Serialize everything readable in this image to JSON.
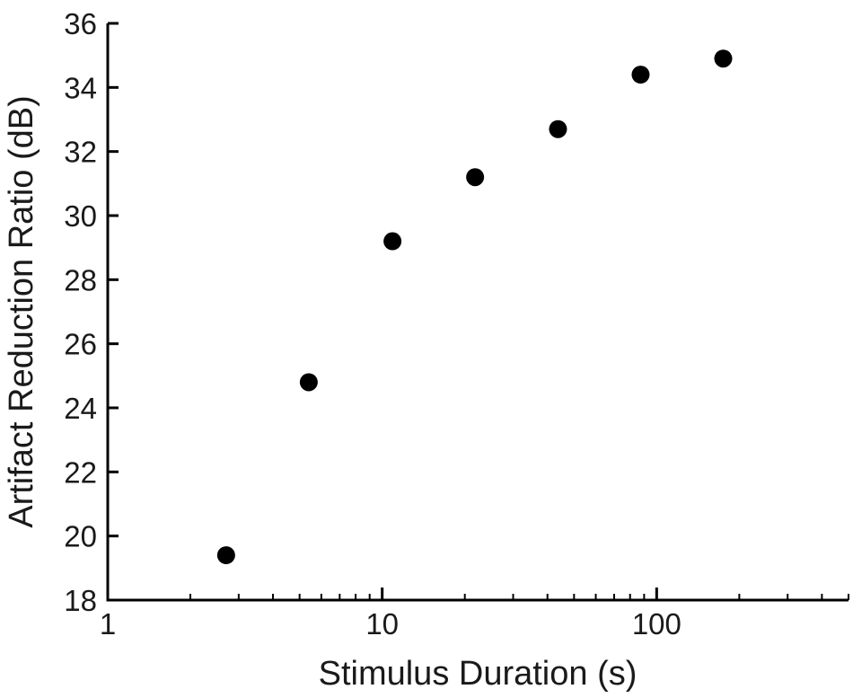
{
  "chart_data": {
    "type": "scatter",
    "title": "",
    "xlabel": "Stimulus Duration (s)",
    "ylabel": "Artifact Reduction Ratio (dB)",
    "xscale": "log",
    "xlim": [
      1,
      500
    ],
    "ylim": [
      18,
      36
    ],
    "grid": false,
    "legend": "none",
    "x_ticks": [
      1,
      10,
      100
    ],
    "x_tick_labels": [
      "1",
      "10",
      "100"
    ],
    "y_ticks": [
      18,
      20,
      22,
      24,
      26,
      28,
      30,
      32,
      34,
      36
    ],
    "y_tick_labels": [
      "18",
      "20",
      "22",
      "24",
      "26",
      "28",
      "30",
      "32",
      "34",
      "36"
    ],
    "series": [
      {
        "marker_color": "#000000",
        "points": [
          {
            "x": 2.7,
            "y": 19.4
          },
          {
            "x": 5.4,
            "y": 24.8
          },
          {
            "x": 10.9,
            "y": 29.2
          },
          {
            "x": 21.8,
            "y": 31.2
          },
          {
            "x": 43.7,
            "y": 32.7
          },
          {
            "x": 87.4,
            "y": 34.4
          },
          {
            "x": 174.8,
            "y": 34.9
          }
        ]
      }
    ]
  }
}
